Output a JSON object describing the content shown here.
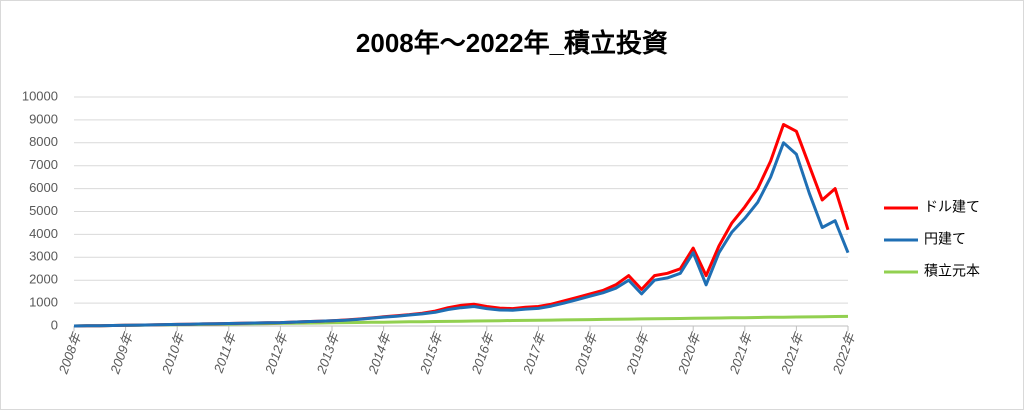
{
  "chart_data": {
    "type": "line",
    "title": "2008年～2022年_積立投資",
    "categories": [
      "2008年",
      null,
      null,
      null,
      "2009年",
      null,
      null,
      null,
      "2010年",
      null,
      null,
      null,
      "2011年",
      null,
      null,
      null,
      "2012年",
      null,
      null,
      null,
      "2013年",
      null,
      null,
      null,
      "2014年",
      null,
      null,
      null,
      "2015年",
      null,
      null,
      null,
      "2016年",
      null,
      null,
      null,
      "2017年",
      null,
      null,
      null,
      "2018年",
      null,
      null,
      null,
      "2019年",
      null,
      null,
      null,
      "2020年",
      null,
      null,
      null,
      "2021年",
      null,
      null,
      null,
      "2021年",
      null,
      null,
      null,
      "2022年"
    ],
    "series": [
      {
        "name": "ドル建て",
        "color": "#ff0000",
        "values": [
          0,
          10,
          15,
          20,
          30,
          40,
          50,
          60,
          70,
          80,
          90,
          100,
          110,
          120,
          130,
          140,
          150,
          170,
          190,
          210,
          230,
          260,
          300,
          350,
          400,
          450,
          500,
          560,
          650,
          800,
          900,
          950,
          850,
          780,
          760,
          820,
          850,
          950,
          1100,
          1250,
          1400,
          1550,
          1800,
          2200,
          1600,
          2200,
          2300,
          2500,
          3400,
          2200,
          3500,
          4500,
          5200,
          6000,
          7200,
          8800,
          8500,
          7000,
          5500,
          6000,
          4200
        ]
      },
      {
        "name": "円建て",
        "color": "#1f6fb4",
        "values": [
          0,
          10,
          15,
          20,
          30,
          40,
          50,
          60,
          70,
          80,
          90,
          100,
          110,
          120,
          130,
          140,
          150,
          170,
          190,
          210,
          230,
          250,
          290,
          340,
          390,
          430,
          480,
          530,
          600,
          720,
          800,
          850,
          760,
          700,
          690,
          740,
          770,
          870,
          1000,
          1150,
          1300,
          1450,
          1650,
          2000,
          1400,
          2000,
          2100,
          2300,
          3200,
          1800,
          3200,
          4100,
          4700,
          5400,
          6500,
          8000,
          7500,
          5800,
          4300,
          4600,
          3200
        ]
      },
      {
        "name": "積立元本",
        "color": "#92d050",
        "values": [
          0,
          7,
          14,
          21,
          28,
          35,
          42,
          49,
          56,
          63,
          70,
          77,
          84,
          91,
          98,
          105,
          112,
          119,
          126,
          133,
          140,
          147,
          154,
          161,
          168,
          175,
          182,
          189,
          196,
          203,
          210,
          217,
          224,
          231,
          238,
          245,
          252,
          259,
          266,
          273,
          280,
          287,
          294,
          301,
          308,
          315,
          322,
          329,
          336,
          343,
          350,
          357,
          364,
          371,
          378,
          385,
          392,
          399,
          406,
          413,
          420
        ]
      }
    ],
    "ylim": [
      0,
      10000
    ],
    "yticks": [
      0,
      1000,
      2000,
      3000,
      4000,
      5000,
      6000,
      7000,
      8000,
      9000,
      10000
    ],
    "grid": true,
    "legend": "right"
  }
}
